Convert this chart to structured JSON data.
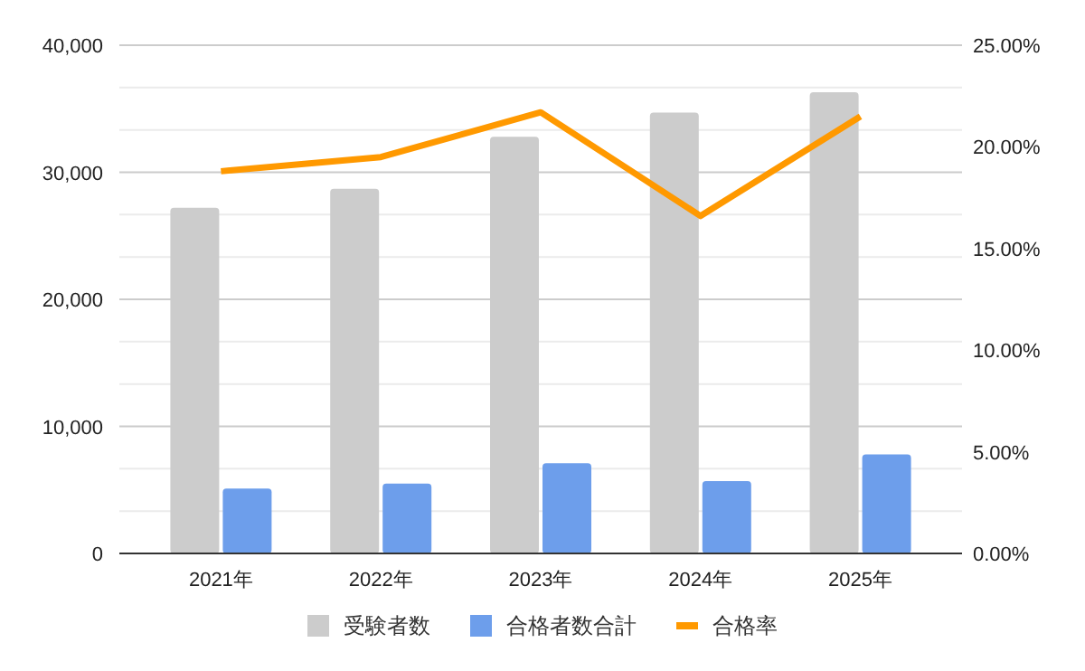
{
  "chart_data": {
    "type": "bar",
    "categories": [
      "2021年",
      "2022年",
      "2023年",
      "2024年",
      "2025年"
    ],
    "series": [
      {
        "name": "受験者数",
        "color": "#cccccc",
        "values": [
          27200,
          28700,
          32800,
          34700,
          36300
        ]
      },
      {
        "name": "合格者数合計",
        "color": "#6d9eeb",
        "values": [
          5100,
          5500,
          7100,
          5700,
          7800
        ]
      },
      {
        "name": "合格率",
        "type": "line",
        "axis": "y2",
        "color": "#ff9900",
        "values": [
          18.8,
          19.5,
          21.7,
          16.6,
          21.5
        ]
      }
    ],
    "ylim": [
      0,
      40000
    ],
    "yticks": [
      {
        "value": 0,
        "label": "0"
      },
      {
        "value": 10000,
        "label": "10,000"
      },
      {
        "value": 20000,
        "label": "20,000"
      },
      {
        "value": 30000,
        "label": "30,000"
      },
      {
        "value": 40000,
        "label": "40,000"
      }
    ],
    "y2lim": [
      0,
      25
    ],
    "y2ticks": [
      {
        "value": 0,
        "label": "0.00%"
      },
      {
        "value": 5,
        "label": "5.00%"
      },
      {
        "value": 10,
        "label": "10.00%"
      },
      {
        "value": 15,
        "label": "15.00%"
      },
      {
        "value": 20,
        "label": "20.00%"
      },
      {
        "value": 25,
        "label": "25.00%"
      }
    ],
    "grid": "y",
    "legend": "bottom"
  }
}
